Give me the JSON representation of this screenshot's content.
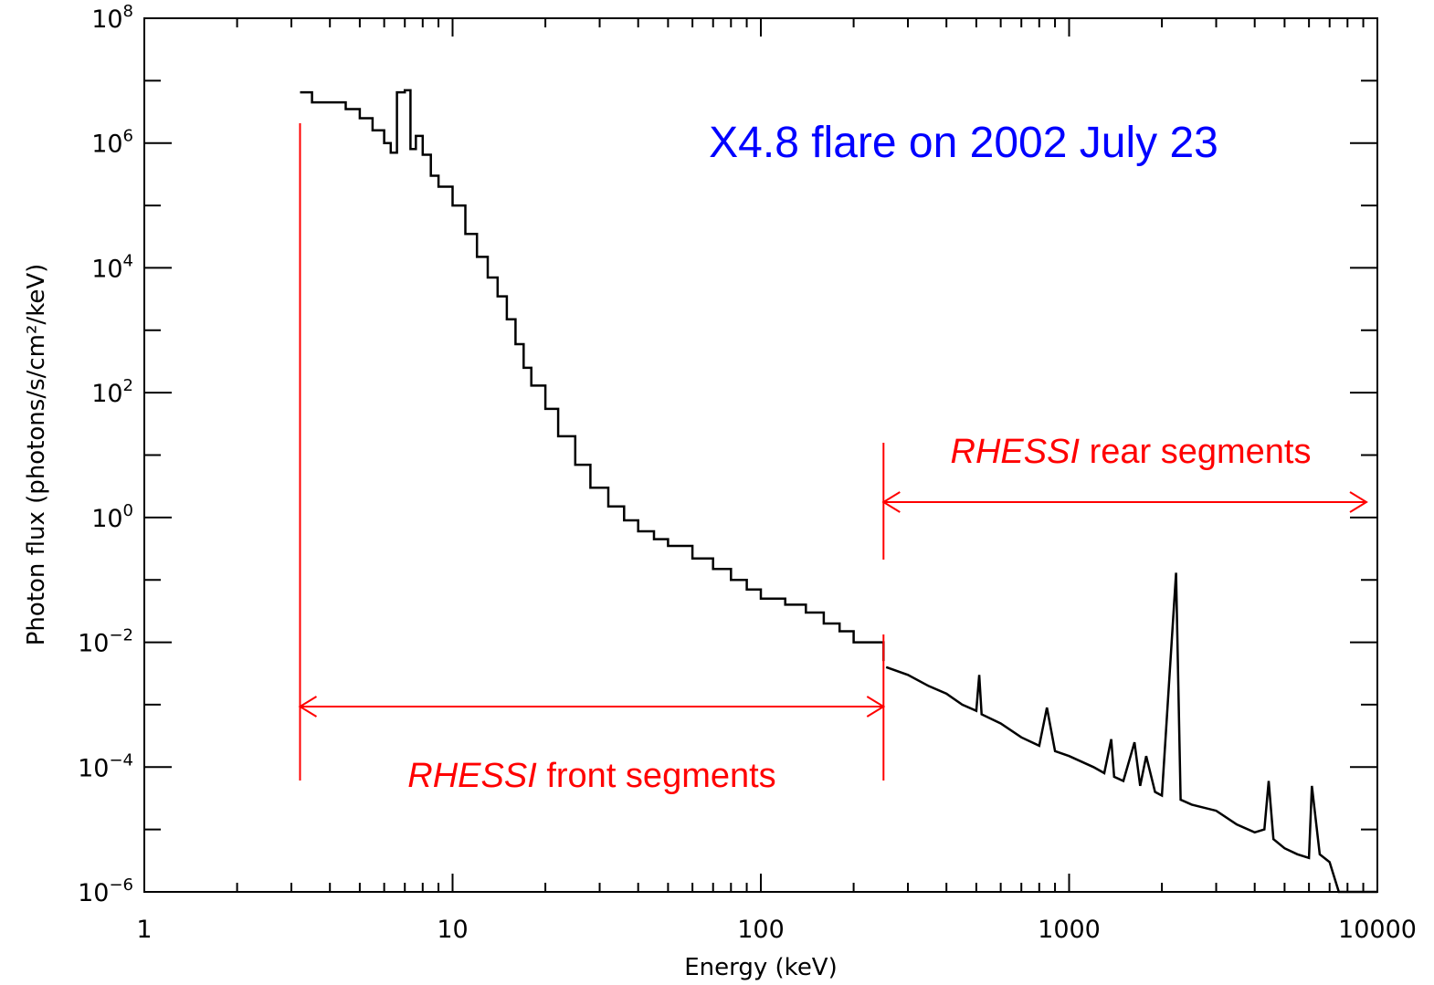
{
  "chart_data": {
    "type": "line",
    "title": "X4.8 flare on 2002 July 23",
    "xlabel": "Energy (keV)",
    "ylabel": "Photon flux (photons/s/cm²/keV)",
    "x_scale": "log",
    "y_scale": "log",
    "xlim": [
      1,
      10000
    ],
    "ylim": [
      1e-06,
      100000000.0
    ],
    "x_ticks": [
      "1",
      "10",
      "100",
      "1000",
      "10000"
    ],
    "y_ticks": [
      {
        "base": "10",
        "exp": "8"
      },
      {
        "base": "10",
        "exp": "6"
      },
      {
        "base": "10",
        "exp": "4"
      },
      {
        "base": "10",
        "exp": "2"
      },
      {
        "base": "10",
        "exp": "0"
      },
      {
        "base": "10",
        "exp": "−2"
      },
      {
        "base": "10",
        "exp": "−4"
      },
      {
        "base": "10",
        "exp": "−6"
      }
    ],
    "series": [
      {
        "style": "histogram-step",
        "color": "#000000",
        "x": [
          3.2,
          3.5,
          4,
          4.5,
          5,
          5.5,
          6,
          6.3,
          6.6,
          7,
          7.3,
          7.6,
          8,
          8.5,
          9,
          10,
          11,
          12,
          13,
          14,
          15,
          16,
          17,
          18,
          20,
          22,
          25,
          28,
          32,
          36,
          40,
          45,
          50,
          60,
          70,
          80,
          90,
          100,
          120,
          140,
          160,
          180,
          200,
          250
        ],
        "y": [
          6500000.0,
          4500000.0,
          4500000.0,
          3500000.0,
          2500000.0,
          1600000.0,
          1000000.0,
          700000.0,
          6500000.0,
          7000000.0,
          800000.0,
          1300000.0,
          650000.0,
          300000.0,
          200000.0,
          100000.0,
          35000.0,
          15000.0,
          7000.0,
          3500.0,
          1500.0,
          600,
          250,
          130,
          55,
          20,
          7,
          3,
          1.5,
          0.9,
          0.6,
          0.45,
          0.35,
          0.22,
          0.15,
          0.1,
          0.07,
          0.05,
          0.04,
          0.03,
          0.02,
          0.015,
          0.01,
          0.005
        ],
        "x_end": 250
      },
      {
        "style": "line",
        "color": "#000000",
        "x": [
          255,
          300,
          350,
          400,
          450,
          500,
          511,
          520,
          600,
          700,
          800,
          847,
          900,
          1000,
          1200,
          1300,
          1370,
          1400,
          1500,
          1630,
          1700,
          1779,
          1900,
          2000,
          2223,
          2300,
          2500,
          3000,
          3500,
          4000,
          4300,
          4440,
          4600,
          5000,
          5500,
          6000,
          6130,
          6500,
          7000,
          7500,
          8000,
          8500,
          9000,
          9500,
          10000
        ],
        "y": [
          0.004,
          0.003,
          0.002,
          0.0015,
          0.001,
          0.0008,
          0.003,
          0.0007,
          0.0005,
          0.0003,
          0.00022,
          0.0009,
          0.00018,
          0.00015,
          0.0001,
          8e-05,
          0.00028,
          7e-05,
          6e-05,
          0.00025,
          5e-05,
          0.00015,
          4e-05,
          3.5e-05,
          0.13,
          3e-05,
          2.5e-05,
          2e-05,
          1.2e-05,
          9e-06,
          1e-05,
          6e-05,
          7e-06,
          5e-06,
          4e-06,
          3.5e-06,
          5e-05,
          4e-06,
          3e-06,
          1e-06,
          5e-07,
          6e-07,
          3e-07,
          8e-07,
          4e-07
        ]
      }
    ],
    "annotations": [
      {
        "id": "front",
        "label_italic": "RHESSI",
        "label_rest": " front segments",
        "x_start": 3.2,
        "x_end": 250,
        "color": "#ff0000"
      },
      {
        "id": "rear",
        "label_italic": "RHESSI",
        "label_rest": " rear segments",
        "x_start": 250,
        "x_end": 10000,
        "color": "#ff0000"
      }
    ],
    "title_color": "#0000ff",
    "grid": false
  }
}
